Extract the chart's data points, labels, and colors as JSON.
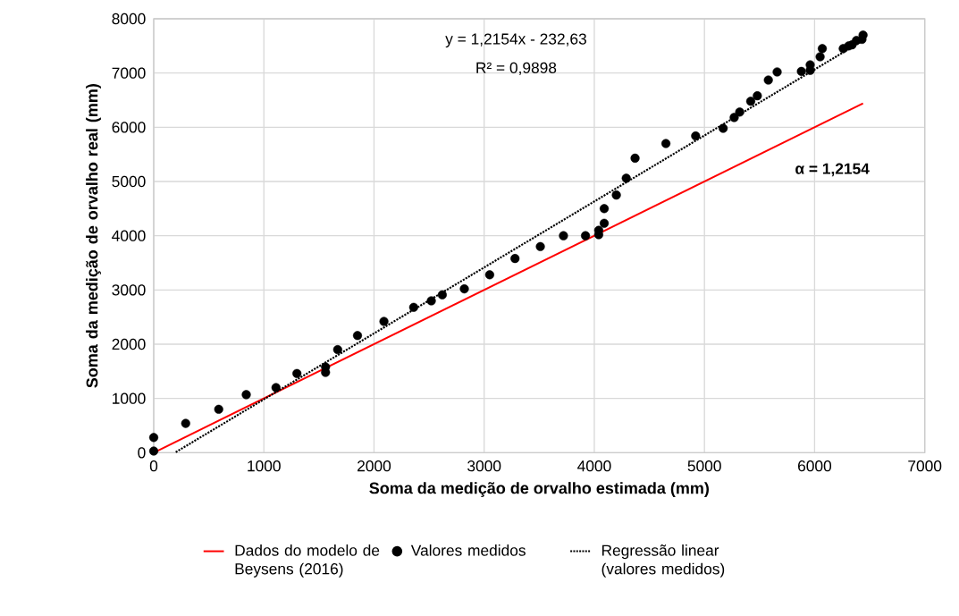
{
  "chart_data": {
    "type": "scatter",
    "xlabel": "Soma da medição de orvalho estimada (mm)",
    "ylabel": "Soma da medição de orvalho real (mm)",
    "xlim": [
      0,
      7000
    ],
    "ylim": [
      0,
      8000
    ],
    "xticks": [
      0,
      1000,
      2000,
      3000,
      4000,
      5000,
      6000,
      7000
    ],
    "yticks": [
      0,
      1000,
      2000,
      3000,
      4000,
      5000,
      6000,
      7000,
      8000
    ],
    "grid": true,
    "legend": "bottom",
    "annotations": [
      "y = 1,2154x - 232,63",
      "R² = 0,9898",
      "**α = 1,2154**"
    ],
    "series": [
      {
        "name": "Dados do modelo de Beysens (2016)",
        "type": "line",
        "color": "#ff0000",
        "line_style": "solid",
        "marker": "none",
        "x": [
          0,
          6440
        ],
        "values": [
          0,
          6440
        ]
      },
      {
        "name": "Valores medidos",
        "color": "#000000",
        "marker": "circle",
        "x": [
          0,
          0,
          290,
          590,
          840,
          1110,
          1300,
          1560,
          1560,
          1670,
          1850,
          2090,
          2360,
          2520,
          2620,
          2820,
          3050,
          3280,
          3510,
          3720,
          3920,
          4040,
          4040,
          4090,
          4090,
          4200,
          4290,
          4370,
          4650,
          4920,
          5170,
          5270,
          5320,
          5420,
          5480,
          5580,
          5660,
          5880,
          5960,
          5960,
          6050,
          6070,
          6260,
          6310,
          6340,
          6380,
          6420,
          6440,
          6430
        ],
        "values": [
          30,
          280,
          540,
          800,
          1070,
          1200,
          1460,
          1480,
          1580,
          1900,
          2160,
          2420,
          2680,
          2800,
          2910,
          3020,
          3280,
          3580,
          3800,
          4000,
          4000,
          4020,
          4100,
          4230,
          4500,
          4750,
          5060,
          5430,
          5700,
          5840,
          5980,
          6180,
          6280,
          6480,
          6580,
          6870,
          7020,
          7030,
          7050,
          7150,
          7300,
          7450,
          7450,
          7500,
          7520,
          7600,
          null,
          7700,
          7620
        ]
      },
      {
        "name": "Regressão linear (valores medidos)",
        "type": "line",
        "color": "#000000",
        "line_style": "dotted",
        "marker": "none",
        "x": [
          200,
          6440
        ],
        "values": [
          10,
          7600
        ]
      }
    ]
  }
}
